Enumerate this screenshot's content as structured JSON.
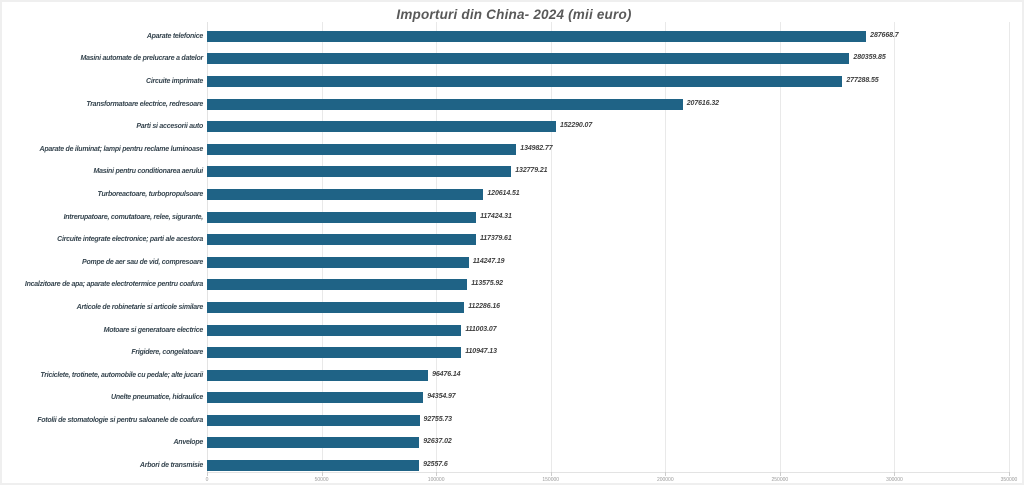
{
  "chart_data": {
    "type": "bar",
    "orientation": "horizontal",
    "title": "Importuri din China- 2024  (mii euro)",
    "categories": [
      "Aparate telefonice",
      "Masini automate de prelucrare a datelor",
      "Circuite imprimate",
      "Transformatoare electrice, redresoare",
      "Parti si accesorii auto",
      "Aparate de iluminat; lampi pentru reclame luminoase",
      "Masini pentru conditionarea aerului",
      "Turboreactoare, turbopropulsoare",
      "Intrerupatoare, comutatoare, relee, sigurante,",
      "Circuite integrate electronice; parti ale acestora",
      "Pompe de aer sau de vid, compresoare",
      "Incalzitoare de apa; aparate electrotermice pentru coafura",
      "Articole de robinetarie si articole similare",
      "Motoare si generatoare electrice",
      "Frigidere, congelatoare",
      "Triciclete, trotinete, automobile cu pedale; alte jucarii",
      "Unelte pneumatice, hidraulice",
      "Fotolii de stomatologie si pentru saloanele de coafura",
      "Anvelope",
      "Arbori de transmisie"
    ],
    "values": [
      287668.7,
      280359.85,
      277288.55,
      207616.32,
      152290.07,
      134982.77,
      132779.21,
      120614.51,
      117424.31,
      117379.61,
      114247.19,
      113575.92,
      112286.16,
      111003.07,
      110947.13,
      96476.14,
      94354.97,
      92755.73,
      92637.02,
      92557.6
    ],
    "xlabel": "",
    "ylabel": "",
    "xlim": [
      0,
      350000
    ],
    "xticks": [
      0,
      50000,
      100000,
      150000,
      200000,
      250000,
      300000,
      350000
    ],
    "grid": true,
    "legend": false,
    "bar_color": "#1f6386",
    "title_color": "#595959",
    "label_color": "#36454f",
    "value_label_color": "#404040"
  }
}
